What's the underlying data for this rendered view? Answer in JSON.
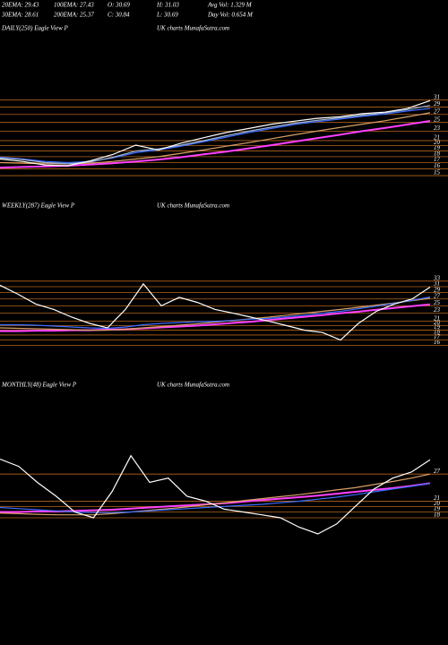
{
  "header": {
    "line1": [
      "20EMA: 29.43",
      "100EMA: 27.43",
      "O: 30.69",
      "H: 31.03",
      "Avg Vol: 1.329 M"
    ],
    "line2": [
      "30EMA: 28.61",
      "200EMA: 25.37",
      "C: 30.84",
      "L: 30.69",
      "Day Vol: 0.654 M"
    ]
  },
  "chart_data": [
    {
      "type": "line",
      "title": "DAILY(250) Eagle  View  P",
      "subtitle": "UK charts MunafaSutra.com",
      "log_scale": true,
      "grid": true,
      "grid_color": "#b5651d",
      "ylim": [
        14.5,
        32
      ],
      "yticks": [
        15,
        16,
        17,
        18,
        19,
        20,
        21,
        23,
        25,
        27,
        29,
        31
      ],
      "series": [
        {
          "color": "#ff40ff",
          "values": [
            16.2,
            16.3,
            16.4,
            16.5,
            16.7,
            16.9,
            17.2,
            17.5,
            17.9,
            18.4,
            18.9,
            19.5,
            20.1,
            20.8,
            21.5,
            22.2,
            23.0,
            23.7,
            24.5,
            25.37
          ]
        },
        {
          "color": "#d9a066",
          "values": [
            17.0,
            16.9,
            16.8,
            16.8,
            16.9,
            17.2,
            17.6,
            18.0,
            18.6,
            19.2,
            19.9,
            20.6,
            21.4,
            22.2,
            23.0,
            23.8,
            24.6,
            25.4,
            26.4,
            27.43
          ]
        },
        {
          "color": "#3a6cff",
          "values": [
            17.9,
            17.6,
            17.2,
            17.0,
            17.2,
            17.8,
            18.7,
            19.2,
            19.9,
            20.8,
            21.7,
            22.7,
            23.6,
            24.5,
            25.2,
            25.8,
            26.5,
            27.1,
            27.9,
            28.61
          ]
        },
        {
          "color": "#9fb4d8",
          "values": [
            17.8,
            17.5,
            17.0,
            16.8,
            17.1,
            17.9,
            19.0,
            19.4,
            20.1,
            21.0,
            22.0,
            23.0,
            23.9,
            24.8,
            25.5,
            26.1,
            26.8,
            27.4,
            28.3,
            29.43
          ]
        },
        {
          "color": "#ffffff",
          "values": [
            17.6,
            17.2,
            16.6,
            16.5,
            17.3,
            18.4,
            20.1,
            19.2,
            20.5,
            21.6,
            22.7,
            23.6,
            24.6,
            25.3,
            26.0,
            26.4,
            27.2,
            27.6,
            28.6,
            30.84
          ]
        }
      ]
    },
    {
      "type": "line",
      "title": "WEEKLY(287) Eagle  View  P",
      "subtitle": "UK charts MunafaSutra.com",
      "log_scale": true,
      "grid": true,
      "grid_color": "#b5651d",
      "ylim": [
        15,
        35
      ],
      "yticks": [
        16,
        17,
        18,
        19,
        20,
        21,
        23,
        25,
        27,
        29,
        31,
        33
      ],
      "series": [
        {
          "color": "#ff40ff",
          "values": [
            18.8,
            18.8,
            18.9,
            18.9,
            19.0,
            19.0,
            19.1,
            19.2,
            19.4,
            19.6,
            19.8,
            20.0,
            20.3,
            20.6,
            20.9,
            21.3,
            21.7,
            22.1,
            22.5,
            23.0,
            23.4,
            23.9,
            24.4,
            24.9,
            25.4
          ]
        },
        {
          "color": "#d9a066",
          "values": [
            19.5,
            19.4,
            19.3,
            19.2,
            19.1,
            19.0,
            19.0,
            19.2,
            19.5,
            19.8,
            20.1,
            20.4,
            20.8,
            21.2,
            21.6,
            22.0,
            22.5,
            23.0,
            23.5,
            24.0,
            24.6,
            25.2,
            25.8,
            26.5,
            27.2
          ]
        },
        {
          "color": "#3a6cff",
          "values": [
            20.2,
            20.2,
            20.1,
            19.9,
            19.7,
            19.5,
            19.4,
            19.7,
            20.2,
            20.5,
            20.7,
            20.9,
            21.0,
            21.2,
            21.5,
            21.7,
            22.1,
            22.5,
            23.0,
            23.5,
            24.2,
            24.9,
            25.7,
            26.6,
            27.6
          ]
        },
        {
          "color": "#ffffff",
          "values": [
            31.5,
            28.5,
            25.5,
            24.0,
            22.0,
            20.5,
            19.5,
            24.0,
            32.0,
            25.0,
            27.5,
            26.0,
            24.0,
            23.0,
            22.0,
            21.0,
            20.0,
            19.0,
            18.5,
            17.0,
            20.5,
            23.5,
            25.5,
            27.0,
            30.84
          ]
        }
      ]
    },
    {
      "type": "line",
      "title": "MONTHLY(48) Eagle  View  P",
      "subtitle": "UK charts MunafaSutra.com",
      "log_scale": true,
      "grid": true,
      "grid_color": "#b5651d",
      "ylim": [
        15,
        33
      ],
      "yticks": [
        18,
        19,
        20,
        21,
        27
      ],
      "series": [
        {
          "color": "#ff40ff",
          "values": [
            19.0,
            19.0,
            19.1,
            19.1,
            19.2,
            19.3,
            19.4,
            19.6,
            19.8,
            20.0,
            20.2,
            20.4,
            20.6,
            20.9,
            21.2,
            21.5,
            21.8,
            22.1,
            22.5,
            22.9,
            23.3,
            23.7,
            24.2,
            24.8
          ]
        },
        {
          "color": "#d9a066",
          "values": [
            18.8,
            18.7,
            18.6,
            18.5,
            18.5,
            18.5,
            18.7,
            19.0,
            19.3,
            19.6,
            19.9,
            20.3,
            20.7,
            21.1,
            21.5,
            21.9,
            22.3,
            22.8,
            23.3,
            23.8,
            24.5,
            25.2,
            26.0,
            27.0
          ]
        },
        {
          "color": "#3a6cff",
          "values": [
            19.8,
            19.6,
            19.4,
            19.2,
            19.0,
            18.9,
            18.9,
            19.0,
            19.2,
            19.4,
            19.6,
            19.8,
            20.0,
            20.2,
            20.4,
            20.7,
            21.0,
            21.4,
            21.8,
            22.3,
            22.9,
            23.5,
            24.1,
            24.8
          ]
        },
        {
          "color": "#ffffff",
          "values": [
            31,
            29,
            25,
            22,
            19,
            18,
            23,
            32,
            25,
            26,
            22,
            21,
            19.5,
            19,
            18.5,
            18,
            16.5,
            15.5,
            17,
            20,
            23.5,
            26,
            27.5,
            30.84
          ]
        }
      ]
    }
  ]
}
